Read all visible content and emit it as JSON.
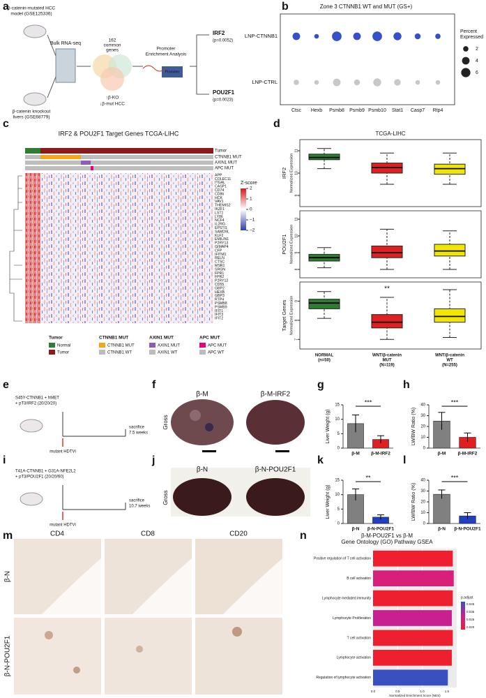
{
  "a": {
    "label": "a",
    "top_model": [
      "β-catenin-mutated HCC",
      "model (GSE125336)"
    ],
    "bottom_model": [
      "β-catenin knockout",
      "livers (GSE68779)"
    ],
    "rnaseq": "Bulk RNA-seq",
    "common": [
      "162",
      "common",
      "genes"
    ],
    "ko": "↑β-KO",
    "mut": "↓β-mut HCC",
    "promoter_title": [
      "Promoter",
      "Enrichment Analysis"
    ],
    "promoter": "Promoter",
    "gene1": "IRF2",
    "p1": "(p=0.0052)",
    "gene2": "POU2F1",
    "p2": "(p=0.0023)"
  },
  "b": {
    "label": "b",
    "title": "Zone 3 CTNNB1 WT and MUT (GS+)",
    "genes": [
      "Ctsc",
      "Hexb",
      "Psmb8",
      "Psmb9",
      "Psmb10",
      "Stat1",
      "Casp7",
      "Rtp4"
    ],
    "series": [
      {
        "name": "LNP-CTNNB1",
        "color": "#3550c8",
        "values": [
          4,
          1.5,
          6.5,
          4,
          6.5,
          4.5,
          2.5,
          2
        ]
      },
      {
        "name": "LNP-CTRL",
        "color": "#c8c8c8",
        "values": [
          2,
          1.5,
          4,
          2.5,
          4.5,
          3,
          1.5,
          1.5
        ]
      }
    ],
    "legend_title": [
      "Percent",
      "Expressed"
    ],
    "size_ticks": [
      2,
      4,
      6
    ]
  },
  "c": {
    "label": "c",
    "title": "IRF2 & POU2F1 Target Genes TCGA-LIHC",
    "tracks": [
      "Tumor",
      "CTNNB1 MUT",
      "AXIN1 MUT",
      "APC MUT"
    ],
    "genes": [
      "APP",
      "COLEC11",
      "ITGAL",
      "CASP1",
      "CD74",
      "CD86",
      "HCK",
      "VAV1",
      "THEMIS2",
      "IKZF1",
      "LST1",
      "LY86",
      "NCF4",
      "IL2RG",
      "EPSTI1",
      "SAMD9L",
      "KLF2",
      "EMILIN1",
      "P2RY13",
      "GIMAP4",
      "CFP",
      "IFITM1",
      "RELN",
      "CTSC",
      "MSR1",
      "SRGN",
      "FPR1",
      "FPR2",
      "P2RY12",
      "CD55",
      "GBP2",
      "HEXB",
      "GBP3",
      "RTP4",
      "PSMB8",
      "PSMB9",
      "IFIT1",
      "IFIT3",
      "IFIT2"
    ],
    "zscore_title": "Z-score",
    "zscore_ticks": [
      {
        "value": 2,
        "label": "2"
      },
      {
        "value": 1,
        "label": "1"
      },
      {
        "value": 0,
        "label": "0"
      },
      {
        "value": -1,
        "label": "−1"
      },
      {
        "value": -2,
        "label": "−2"
      }
    ],
    "legend": [
      {
        "title": "Tumor",
        "items": [
          {
            "name": "Normal",
            "color": "#2e7d32"
          },
          {
            "name": "Tumor",
            "color": "#8b1a1a"
          }
        ]
      },
      {
        "title": "CTNNB1 MUT",
        "items": [
          {
            "name": "CTNNB1 MUT",
            "color": "#f2a51d"
          },
          {
            "name": "CTNNB1 WT",
            "color": "#bdbdbd"
          }
        ]
      },
      {
        "title": "AXIN1 MUT",
        "items": [
          {
            "name": "AXIN1 MUT",
            "color": "#8e5bb5"
          },
          {
            "name": "AXIN1 WT",
            "color": "#bdbdbd"
          }
        ]
      },
      {
        "title": "APC MUT",
        "items": [
          {
            "name": "APC MUT",
            "color": "#e6007e"
          },
          {
            "name": "APC WT",
            "color": "#bdbdbd"
          }
        ]
      }
    ]
  },
  "d": {
    "label": "d",
    "title": "TCGA-LIHC",
    "ylabel": "Normalized Expression",
    "categories": [
      [
        "NORMAL",
        "(n=50)"
      ],
      [
        "WNT/β-catenin",
        "MUT",
        "(N=119)"
      ],
      [
        "WNT/β-catenin",
        "WT",
        "(N=255)"
      ]
    ],
    "colors": [
      "#2e7d32",
      "#e02020",
      "#f2e600"
    ],
    "panels": [
      {
        "name": "IRF2",
        "ylim": [
          8.5,
          11.5
        ],
        "yticks": [
          9,
          10,
          11
        ],
        "min": [
          10.2,
          9.5,
          9.5
        ],
        "q1": [
          10.6,
          10.0,
          9.95
        ],
        "median": [
          10.7,
          10.25,
          10.2
        ],
        "q3": [
          10.85,
          10.45,
          10.4
        ],
        "max": [
          11.1,
          10.9,
          10.9
        ]
      },
      {
        "name": "POU2F1",
        "ylim": [
          7.5,
          11.5
        ],
        "yticks": [
          8,
          9,
          10,
          11
        ],
        "min": [
          8.1,
          8.0,
          8.0
        ],
        "q1": [
          8.5,
          8.7,
          8.8
        ],
        "median": [
          8.7,
          9.0,
          9.1
        ],
        "q3": [
          8.9,
          9.4,
          9.5
        ],
        "max": [
          9.3,
          10.4,
          10.3
        ]
      },
      {
        "name": "Target Genes",
        "ylim": [
          6.5,
          10
        ],
        "yticks": [
          7,
          8,
          9
        ],
        "min": [
          8.1,
          7.0,
          7.1
        ],
        "q1": [
          8.6,
          7.6,
          7.9
        ],
        "median": [
          8.9,
          7.9,
          8.2
        ],
        "q3": [
          9.1,
          8.3,
          8.6
        ],
        "max": [
          9.5,
          9.2,
          9.6
        ],
        "annotation": "**"
      }
    ]
  },
  "e": {
    "label": "e",
    "lines": [
      "S45Y-CTNNB1 + hMET",
      "+ pT3/IRF2 (20/20/20)"
    ],
    "end": [
      "sacrifice",
      "7.5 weeks"
    ],
    "inject": "mutant HDTVi"
  },
  "f": {
    "label": "f",
    "row": "Gross",
    "groups": [
      "β-M",
      "β-M-IRF2"
    ]
  },
  "g": {
    "label": "g",
    "ylabel": "Liver Weight (g)",
    "categories": [
      "β-M",
      "β-M-IRF2"
    ],
    "values": [
      8.5,
      3
    ],
    "errors": [
      3,
      1.3
    ],
    "colors": [
      "#808080",
      "#e02020"
    ],
    "ylim": [
      0,
      15
    ],
    "yticks": [
      0,
      5,
      10,
      15
    ],
    "annotation": "***"
  },
  "h": {
    "label": "h",
    "ylabel": "LW/BW Ratio (%)",
    "categories": [
      "β-M",
      "β-M-IRF2"
    ],
    "values": [
      25,
      10
    ],
    "errors": [
      8,
      4
    ],
    "colors": [
      "#808080",
      "#e02020"
    ],
    "ylim": [
      0,
      40
    ],
    "yticks": [
      0,
      10,
      20,
      30,
      40
    ],
    "annotation": "***"
  },
  "i": {
    "label": "i",
    "lines": [
      "T41A-CTNNB1 + G31A-NFE2L2",
      "+ pT3/POU2F1 (20/20/60)"
    ],
    "end": [
      "sacrifice",
      "10.7 weeks"
    ],
    "inject": "mutant HDTVi"
  },
  "j": {
    "label": "j",
    "row": "Gross",
    "groups": [
      "β-N",
      "β-N-POU2F1"
    ]
  },
  "k": {
    "label": "k",
    "ylabel": "Liver Weight (g)",
    "categories": [
      "β-N",
      "β-N-POU2F1"
    ],
    "values": [
      10,
      2.2
    ],
    "errors": [
      2,
      0.8
    ],
    "colors": [
      "#808080",
      "#2040c0"
    ],
    "ylim": [
      0,
      15
    ],
    "yticks": [
      0,
      5,
      10,
      15
    ],
    "annotation": "**"
  },
  "l": {
    "label": "l",
    "ylabel": "LW/BW Ratio (%)",
    "categories": [
      "β-N",
      "β-N-POU2F1"
    ],
    "values": [
      27,
      7
    ],
    "errors": [
      4,
      3
    ],
    "colors": [
      "#808080",
      "#2040c0"
    ],
    "ylim": [
      0,
      40
    ],
    "yticks": [
      0,
      10,
      20,
      30,
      40
    ],
    "annotation": "***"
  },
  "m": {
    "label": "m",
    "columns": [
      "CD4",
      "CD8",
      "CD20"
    ],
    "rows": [
      "β-N",
      "β-N-POU2F1"
    ]
  },
  "n": {
    "label": "n",
    "title": [
      "β-M-POU2F1 vs β-M",
      "Gene Ontology (GO) Pathway GSEA"
    ],
    "xlabel": "Normalized Enrichment Score (NES)",
    "categories": [
      "Positive regulation of T cell activation",
      "B cell activation",
      "Lymphocyte mediated immunity",
      "Lymphocyte Proliferation",
      "T cell activation",
      "Lymphocyte activation",
      "Regulation of lymphocyte activation"
    ],
    "values": [
      1.62,
      1.64,
      1.62,
      1.6,
      1.62,
      1.6,
      1.52
    ],
    "colors": [
      "#ee2030",
      "#d8207a",
      "#ee2030",
      "#c82090",
      "#ee2030",
      "#ee2030",
      "#3a50c0"
    ],
    "xlim": [
      0,
      1.7
    ],
    "xticks": [
      {
        "value": 0,
        "label": "0.0"
      },
      0.5,
      {
        "value": 1,
        "label": "1.0"
      },
      1.5
    ],
    "legend_title": "p.adjust",
    "legend_ticks": [
      "0.045",
      "0.035",
      "0.025",
      "0.020"
    ]
  }
}
